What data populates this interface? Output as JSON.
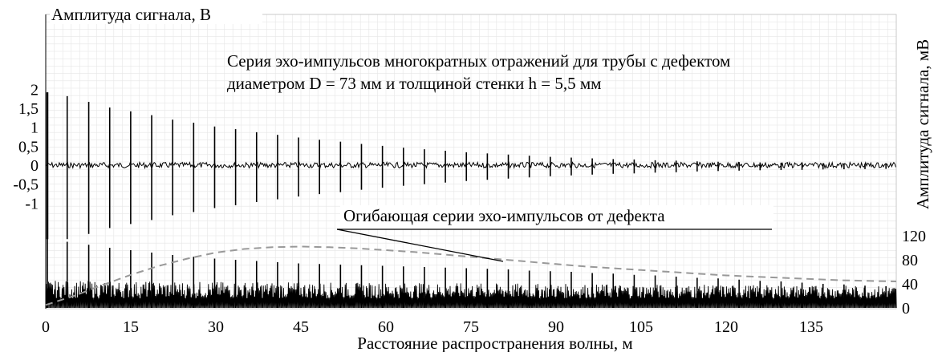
{
  "chart_data": {
    "type": "line",
    "annotation_lines": [
      "Серия эхо-импульсов многократных отражений для трубы с дефектом",
      "диаметром D = 73 мм и толщиной стенки h = 5,5 мм"
    ],
    "envelope_label": "Огибающая серии эхо-импульсов от дефекта",
    "xlabel": "Расстояние распространения волны, м",
    "ylabel_left": "Амплитуда сигнала, В",
    "ylabel_right": "Амплитуда сигнала, мВ",
    "xlim": [
      0,
      150
    ],
    "x_ticks": [
      "0",
      "15",
      "30",
      "45",
      "60",
      "75",
      "90",
      "105",
      "120",
      "135"
    ],
    "x_tick_values": [
      0,
      15,
      30,
      45,
      60,
      75,
      90,
      105,
      120,
      135
    ],
    "y_left": {
      "ticks": [
        "2",
        "1,5",
        "1",
        "0,5",
        "0",
        "-0,5",
        "-1"
      ],
      "tick_values": [
        2,
        1.5,
        1,
        0.5,
        0,
        -0.5,
        -1
      ]
    },
    "y_right": {
      "ticks": [
        "120",
        "80",
        "40",
        "0"
      ],
      "tick_values": [
        120,
        80,
        40,
        0
      ],
      "ylim": [
        0,
        120
      ]
    },
    "grid": true,
    "series": [
      {
        "role": "upper",
        "color": "#000000",
        "pulse_x": [
          0,
          3.5,
          7.3,
          11,
          14.7,
          18.4,
          22.1,
          25.8,
          29.5,
          33.2,
          36.9,
          40.6,
          44.3,
          48,
          51.7,
          55.4,
          59.1,
          62.8,
          66.5,
          70.2,
          73.9,
          77.6,
          81.3,
          85,
          88.7,
          92.4,
          96.1,
          99.8,
          103.5,
          107.2,
          110.9,
          114.6,
          118.3,
          122,
          125.7,
          129.4,
          133.1,
          136.8,
          140.5,
          144.2,
          147.9
        ],
        "pulse_peak": [
          1.92,
          1.82,
          1.67,
          1.52,
          1.42,
          1.32,
          1.2,
          1.12,
          1.02,
          0.95,
          0.87,
          0.8,
          0.73,
          0.67,
          0.62,
          0.56,
          0.51,
          0.46,
          0.42,
          0.38,
          0.34,
          0.31,
          0.28,
          0.25,
          0.22,
          0.2,
          0.18,
          0.16,
          0.15,
          0.13,
          0.12,
          0.1,
          0.09,
          0.08,
          0.07,
          0.065,
          0.06,
          0.05,
          0.045,
          0.04,
          0.035
        ]
      },
      {
        "role": "lower",
        "color": "#000000",
        "pulse_x": [
          0,
          3.5,
          7.3,
          11,
          14.7,
          18.4,
          22.1,
          25.8,
          29.5,
          33.2,
          36.9,
          40.6,
          44.3,
          48,
          51.7,
          55.4,
          59.1,
          62.8,
          66.5,
          70.2,
          73.9,
          77.6,
          81.3,
          85,
          88.7,
          92.4,
          96.1,
          99.8,
          103.5,
          107.2,
          110.9,
          114.6,
          118.3,
          122,
          125.7,
          129.4,
          133.1,
          136.8,
          140.5,
          144.2,
          147.9
        ],
        "pulse_peak": [
          120,
          110,
          105,
          100,
          96,
          92,
          88,
          85,
          82,
          80,
          78,
          76,
          74,
          73,
          72,
          71,
          70,
          69,
          68,
          67,
          66,
          65,
          64,
          62,
          61,
          60,
          58,
          57,
          55,
          54,
          52,
          50,
          49,
          47,
          45,
          44,
          42,
          40,
          39,
          37,
          36
        ]
      },
      {
        "role": "envelope",
        "color": "#999999",
        "x": [
          0,
          5,
          10,
          15,
          20,
          25,
          30,
          35,
          40,
          45,
          50,
          55,
          60,
          65,
          70,
          75,
          80,
          85,
          90,
          95,
          100,
          105,
          110,
          115,
          120,
          125,
          130,
          135,
          140,
          145,
          150
        ],
        "y": [
          5,
          20,
          38,
          55,
          70,
          82,
          92,
          98,
          101,
          102,
          101,
          99,
          96,
          93,
          89,
          85,
          81,
          77,
          73,
          69,
          66,
          63,
          60,
          57,
          54,
          52,
          50,
          48,
          46,
          45,
          44
        ]
      }
    ]
  }
}
